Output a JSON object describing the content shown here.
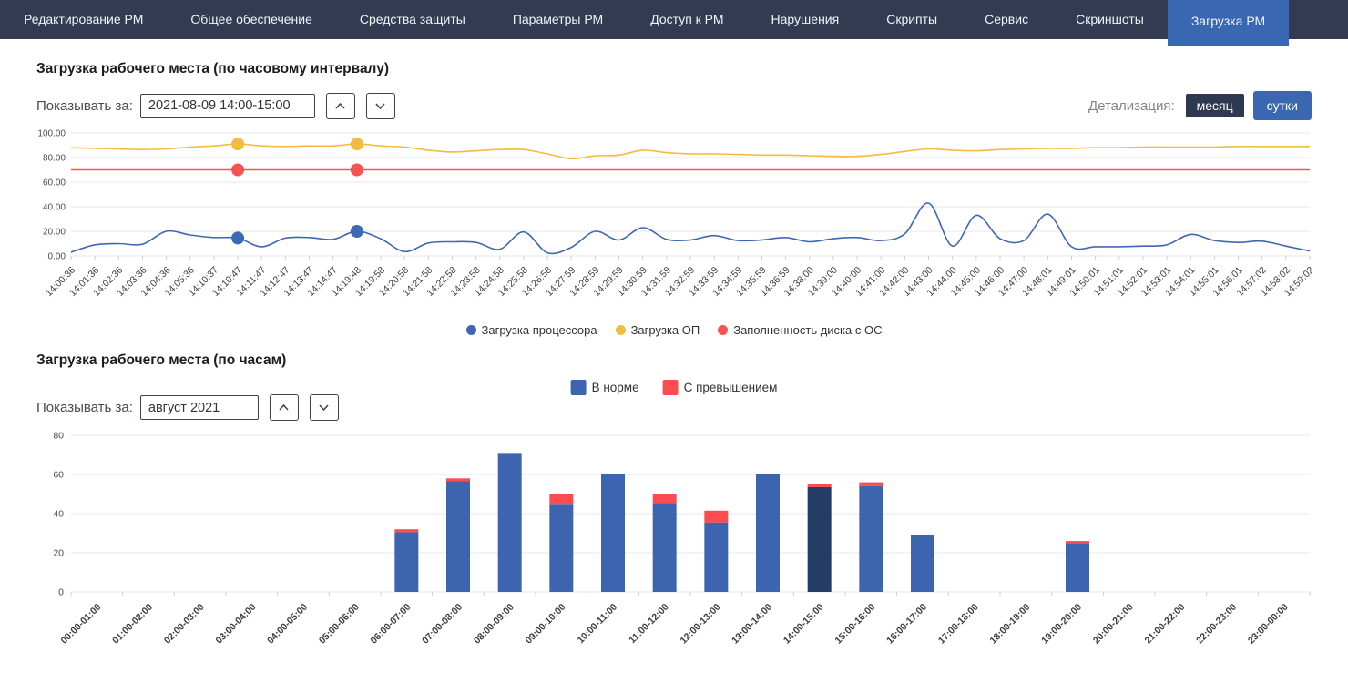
{
  "nav": {
    "tabs": [
      {
        "label": "Редактирование РМ",
        "active": false
      },
      {
        "label": "Общее обеспечение",
        "active": false
      },
      {
        "label": "Средства защиты",
        "active": false
      },
      {
        "label": "Параметры РМ",
        "active": false
      },
      {
        "label": "Доступ к РМ",
        "active": false
      },
      {
        "label": "Нарушения",
        "active": false
      },
      {
        "label": "Скрипты",
        "active": false
      },
      {
        "label": "Сервис",
        "active": false
      },
      {
        "label": "Скриншоты",
        "active": false
      },
      {
        "label": "Загрузка РМ",
        "active": true
      }
    ]
  },
  "colors": {
    "navbar_bg": "#333b52",
    "active_tab": "#3a67b2",
    "button_dark": "#2e3850",
    "button_blue": "#3a67b2",
    "line_blue": "#3f68b4",
    "line_yellow": "#f2bc42",
    "line_red": "#fa5252",
    "bar_blue": "#3d65af",
    "bar_red": "#fb4d50",
    "bar_selected": "#243d66",
    "grid": "#e7e7e7",
    "axis_text": "#4d4d4d"
  },
  "hourly_section": {
    "title": "Загрузка рабочего места (по часовому интервалу)",
    "show_label": "Показывать за:",
    "period_value": "2021-08-09 14:00-15:00",
    "detail_label": "Детализация:",
    "detail_month": "месяц",
    "detail_day": "сутки"
  },
  "daily_section": {
    "title": "Загрузка рабочего места (по часам)",
    "show_label": "Показывать за:",
    "period_value": "август 2021"
  },
  "chart_data": [
    {
      "type": "line",
      "title": "Загрузка рабочего места (по часовому интервалу)",
      "x": [
        "14:00:36",
        "14:01:36",
        "14:02:36",
        "14:03:36",
        "14:04:36",
        "14:05:36",
        "14:10:37",
        "14:10:47",
        "14:11:47",
        "14:12:47",
        "14:13:47",
        "14:14:47",
        "14:19:48",
        "14:19:58",
        "14:20:58",
        "14:21:58",
        "14:22:58",
        "14:23:58",
        "14:24:58",
        "14:25:58",
        "14:26:58",
        "14:27:59",
        "14:28:59",
        "14:29:59",
        "14:30:59",
        "14:31:59",
        "14:32:59",
        "14:33:59",
        "14:34:59",
        "14:35:59",
        "14:36:59",
        "14:38:00",
        "14:39:00",
        "14:40:00",
        "14:41:00",
        "14:42:00",
        "14:43:00",
        "14:44:00",
        "14:45:00",
        "14:46:00",
        "14:47:00",
        "14:48:01",
        "14:49:01",
        "14:50:01",
        "14:51:01",
        "14:52:01",
        "14:53:01",
        "14:54:01",
        "14:55:01",
        "14:56:01",
        "14:57:02",
        "14:58:02",
        "14:59:02"
      ],
      "ylim": [
        0,
        100
      ],
      "yticks": [
        {
          "v": 0,
          "label": "0.00"
        },
        {
          "v": 20,
          "label": "20.00"
        },
        {
          "v": 40,
          "label": "40.00"
        },
        {
          "v": 60,
          "label": "60.00"
        },
        {
          "v": 80,
          "label": "80.00"
        },
        {
          "v": 100,
          "label": "100.00"
        }
      ],
      "marked_indices": [
        7,
        12
      ],
      "grid": true,
      "legend_position": "bottom",
      "series": [
        {
          "name": "Загрузка процессора",
          "color": "#3f68b4",
          "values": [
            3,
            9,
            10,
            9.5,
            20,
            17,
            15,
            14.5,
            7.5,
            14.5,
            15,
            13.5,
            20,
            14,
            3.5,
            10.5,
            11.5,
            11,
            5.5,
            19.5,
            2.5,
            7,
            20,
            13,
            23,
            13.5,
            13,
            16.5,
            12.5,
            13,
            15,
            11.5,
            14,
            15,
            12.5,
            18,
            43,
            8,
            33,
            14,
            12.5,
            34,
            7.5,
            7.5,
            7.5,
            8,
            9,
            17.5,
            12.5,
            11,
            12,
            8,
            4
          ]
        },
        {
          "name": "Загрузка ОП",
          "color": "#f2bc42",
          "values": [
            88,
            87.5,
            87,
            86.5,
            87,
            88.5,
            89.5,
            91,
            89.5,
            89,
            89.5,
            89.5,
            91,
            89.5,
            88.5,
            86,
            84.5,
            85.5,
            86.5,
            86.5,
            83,
            79,
            81.5,
            82,
            86,
            84,
            83,
            83,
            82.5,
            82,
            82,
            81.5,
            81,
            81,
            82.5,
            85,
            87,
            86,
            85.5,
            86.5,
            87,
            87.5,
            87.5,
            88,
            88,
            88.5,
            88.5,
            88.5,
            88.5,
            89,
            89,
            89,
            89
          ]
        },
        {
          "name": "Заполненность диска с ОС",
          "color": "#fa5252",
          "values": [
            70,
            70,
            70,
            70,
            70,
            70,
            70,
            70,
            70,
            70,
            70,
            70,
            70,
            70,
            70,
            70,
            70,
            70,
            70,
            70,
            70,
            70,
            70,
            70,
            70,
            70,
            70,
            70,
            70,
            70,
            70,
            70,
            70,
            70,
            70,
            70,
            70,
            70,
            70,
            70,
            70,
            70,
            70,
            70,
            70,
            70,
            70,
            70,
            70,
            70,
            70,
            70,
            70
          ]
        }
      ]
    },
    {
      "type": "bar",
      "stacked": true,
      "categories": [
        "00:00-01:00",
        "01:00-02:00",
        "02:00-03:00",
        "03:00-04:00",
        "04:00-05:00",
        "05:00-06:00",
        "06:00-07:00",
        "07:00-08:00",
        "08:00-09:00",
        "09:00-10:00",
        "10:00-11:00",
        "11:00-12:00",
        "12:00-13:00",
        "13:00-14:00",
        "14:00-15:00",
        "15:00-16:00",
        "16:00-17:00",
        "17:00-18:00",
        "18:00-19:00",
        "19:00-20:00",
        "20:00-21:00",
        "21:00-22:00",
        "22:00-23:00",
        "23:00-00:00"
      ],
      "ylim": [
        0,
        80
      ],
      "yticks": [
        {
          "v": 0,
          "label": "0"
        },
        {
          "v": 20,
          "label": "20"
        },
        {
          "v": 40,
          "label": "40"
        },
        {
          "v": 60,
          "label": "60"
        },
        {
          "v": 80,
          "label": "80"
        }
      ],
      "grid": true,
      "selected_index": 14,
      "legend_position": "top",
      "series": [
        {
          "name": "В норме",
          "color": "#3d65af",
          "values": [
            0,
            0,
            0,
            0,
            0,
            0,
            30.5,
            56.5,
            71,
            45,
            60,
            45.5,
            35.5,
            60,
            53.5,
            54,
            29,
            0,
            0,
            25,
            0,
            0,
            0,
            0
          ]
        },
        {
          "name": "С превышением",
          "color": "#fb4d50",
          "values": [
            0,
            0,
            0,
            0,
            0,
            0,
            1.5,
            1.5,
            0,
            5,
            0,
            4.5,
            6,
            0,
            1.5,
            2,
            0,
            0,
            0,
            1,
            0,
            0,
            0,
            0
          ]
        }
      ]
    }
  ]
}
